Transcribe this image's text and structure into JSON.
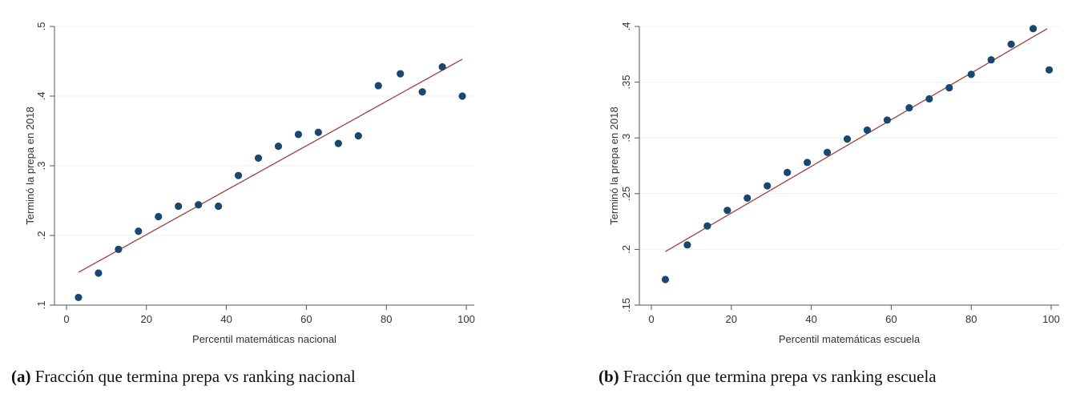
{
  "chart_data": [
    {
      "type": "scatter",
      "xlabel": "Percentil matemáticas nacional",
      "ylabel": "Terminó la prepa en 2018",
      "xlim": [
        -3,
        102
      ],
      "ylim": [
        0.1,
        0.5
      ],
      "xticks": [
        0,
        20,
        40,
        60,
        80,
        100
      ],
      "xtick_labels": [
        "0",
        "20",
        "40",
        "60",
        "80",
        "100"
      ],
      "yticks": [
        0.1,
        0.2,
        0.3,
        0.4,
        0.5
      ],
      "ytick_labels": [
        ".1",
        ".2",
        ".3",
        ".4",
        ".5"
      ],
      "grid": "horizontal",
      "point_color": "#1a476f",
      "fit_color": "#a04040",
      "series": [
        {
          "x": [
            3,
            8,
            13,
            18,
            23,
            28,
            33,
            38,
            43,
            48,
            53,
            58,
            63,
            68,
            73,
            78,
            83.5,
            89,
            94,
            99
          ],
          "y": [
            0.111,
            0.146,
            0.18,
            0.206,
            0.227,
            0.242,
            0.244,
            0.242,
            0.286,
            0.311,
            0.328,
            0.345,
            0.348,
            0.332,
            0.343,
            0.415,
            0.432,
            0.406,
            0.442,
            0.4
          ]
        }
      ],
      "fit_line": {
        "x": [
          3,
          99
        ],
        "y": [
          0.147,
          0.453
        ]
      }
    },
    {
      "type": "scatter",
      "xlabel": "Percentil matemáticas escuela",
      "ylabel": "Terminó la prepa en 2018",
      "xlim": [
        -3,
        102
      ],
      "ylim": [
        0.15,
        0.4
      ],
      "xticks": [
        0,
        20,
        40,
        60,
        80,
        100
      ],
      "xtick_labels": [
        "0",
        "20",
        "40",
        "60",
        "80",
        "100"
      ],
      "yticks": [
        0.15,
        0.2,
        0.25,
        0.3,
        0.35,
        0.4
      ],
      "ytick_labels": [
        ".15",
        ".2",
        ".25",
        ".3",
        ".35",
        ".4"
      ],
      "grid": "horizontal",
      "point_color": "#1a476f",
      "fit_color": "#a04040",
      "series": [
        {
          "x": [
            3.5,
            9,
            14,
            19,
            24,
            29,
            34,
            39,
            44,
            49,
            54,
            59,
            64.5,
            69.5,
            74.5,
            80,
            85,
            90,
            95.5,
            99.5
          ],
          "y": [
            0.173,
            0.204,
            0.221,
            0.235,
            0.246,
            0.257,
            0.269,
            0.278,
            0.287,
            0.299,
            0.307,
            0.316,
            0.327,
            0.335,
            0.345,
            0.357,
            0.37,
            0.384,
            0.398,
            0.361
          ]
        }
      ],
      "fit_line": {
        "x": [
          3.5,
          99
        ],
        "y": [
          0.198,
          0.398
        ]
      }
    }
  ],
  "captions": [
    {
      "label": "(a)",
      "text": "Fracción que termina prepa vs ranking nacional"
    },
    {
      "label": "(b)",
      "text": "Fracción que termina prepa vs ranking escuela"
    }
  ]
}
